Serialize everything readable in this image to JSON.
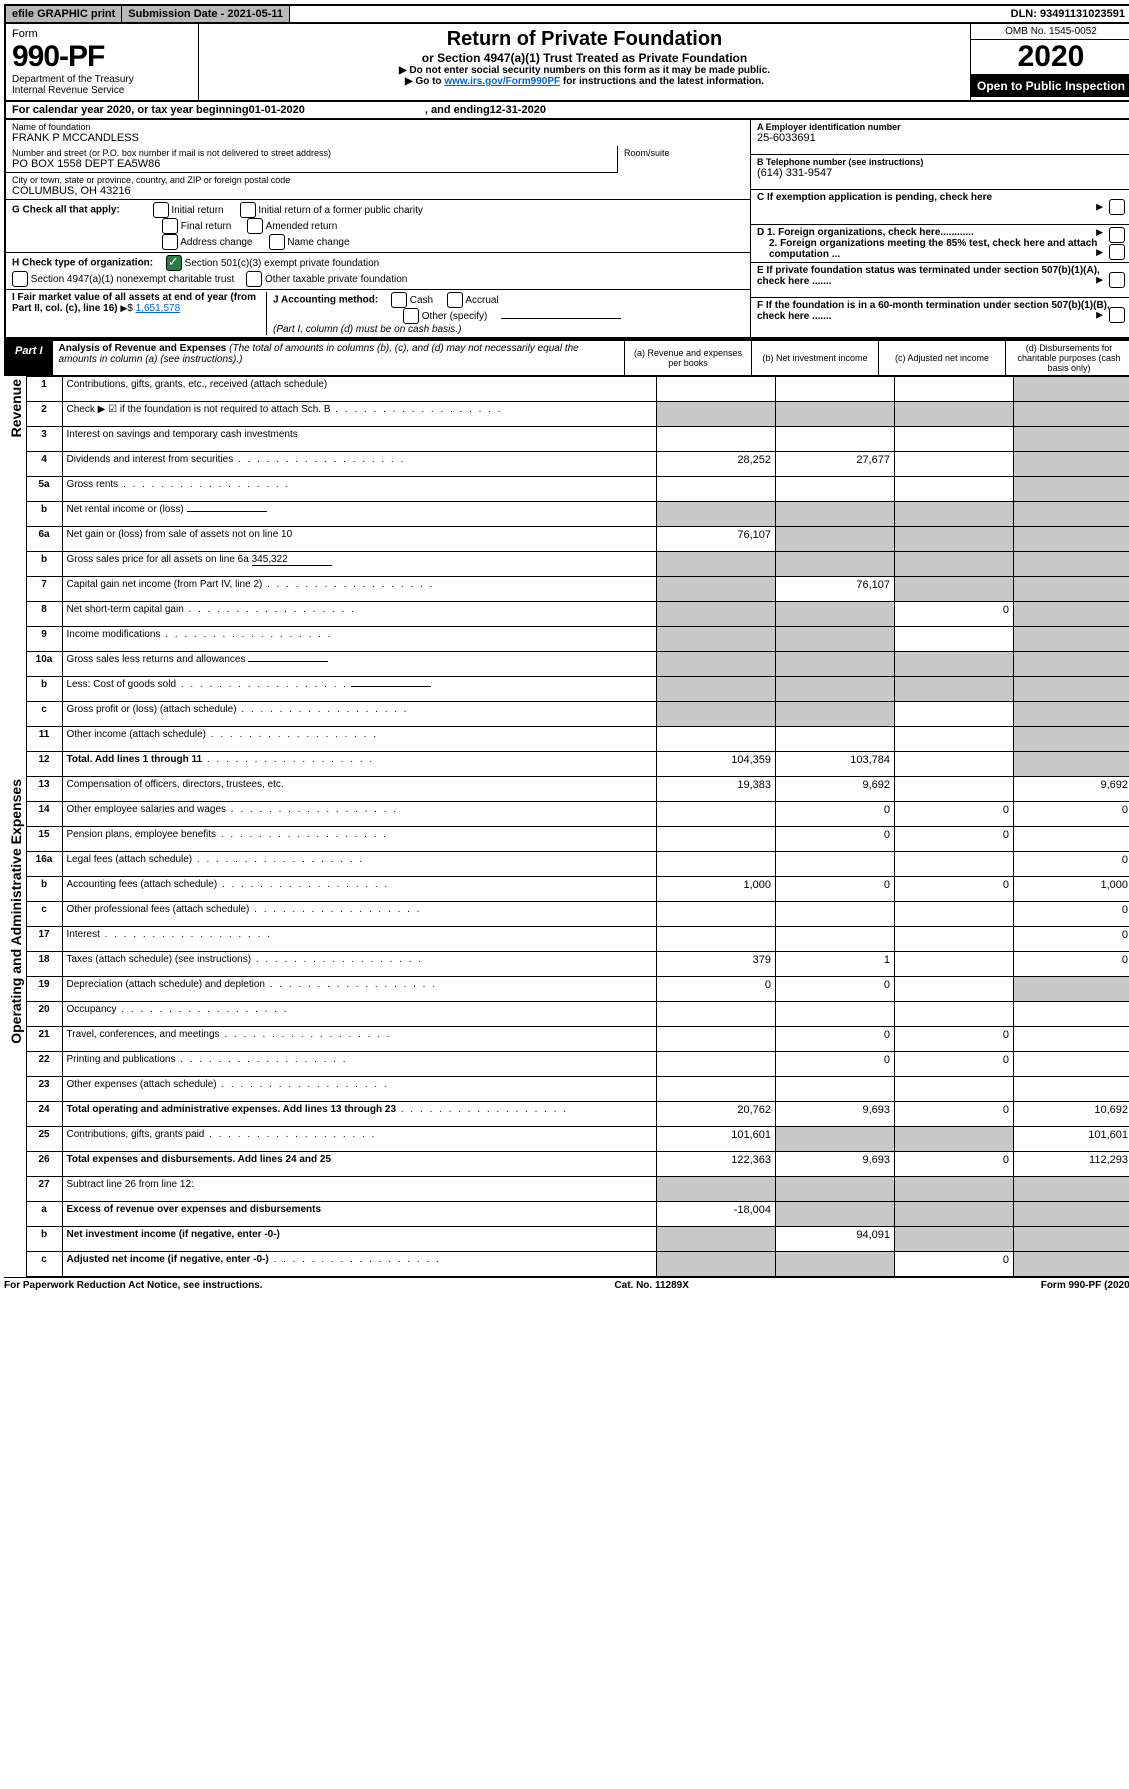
{
  "top": {
    "efile": "efile GRAPHIC print",
    "subdate_label": "Submission Date - ",
    "subdate": "2021-05-11",
    "dln_label": "DLN: ",
    "dln": "93491131023591"
  },
  "header": {
    "form_word": "Form",
    "form_no": "990-PF",
    "dept": "Department of the Treasury\nInternal Revenue Service",
    "title": "Return of Private Foundation",
    "subtitle": "or Section 4947(a)(1) Trust Treated as Private Foundation",
    "instr1": "▶ Do not enter social security numbers on this form as it may be made public.",
    "instr2_pre": "▶ Go to ",
    "instr2_link": "www.irs.gov/Form990PF",
    "instr2_post": " for instructions and the latest information.",
    "omb": "OMB No. 1545-0052",
    "year": "2020",
    "open": "Open to Public Inspection"
  },
  "cal": {
    "pre": "For calendar year 2020, or tax year beginning ",
    "begin": "01-01-2020",
    "mid": ", and ending ",
    "end": "12-31-2020"
  },
  "id": {
    "name_label": "Name of foundation",
    "name": "FRANK P MCCANDLESS",
    "addr_label": "Number and street (or P.O. box number if mail is not delivered to street address)",
    "addr": "PO BOX 1558 DEPT EA5W86",
    "room_label": "Room/suite",
    "city_label": "City or town, state or province, country, and ZIP or foreign postal code",
    "city": "COLUMBUS, OH  43216",
    "a_label": "A Employer identification number",
    "a_val": "25-6033691",
    "b_label": "B Telephone number (see instructions)",
    "b_val": "(614) 331-9547",
    "c_label": "C If exemption application is pending, check here",
    "d1_label": "D 1. Foreign organizations, check here............",
    "d2_label": "2. Foreign organizations meeting the 85% test, check here and attach computation ...",
    "e_label": "E  If private foundation status was terminated under section 507(b)(1)(A), check here .......",
    "f_label": "F  If the foundation is in a 60-month termination under section 507(b)(1)(B), check here .......",
    "g_label": "G Check all that apply:",
    "g_opts": [
      "Initial return",
      "Initial return of a former public charity",
      "Final return",
      "Amended return",
      "Address change",
      "Name change"
    ],
    "h_label": "H Check type of organization:",
    "h_opts": [
      "Section 501(c)(3) exempt private foundation",
      "Section 4947(a)(1) nonexempt charitable trust",
      "Other taxable private foundation"
    ],
    "i_label": "I Fair market value of all assets at end of year (from Part II, col. (c), line 16)",
    "i_val": "1,651,578",
    "j_label": "J Accounting method:",
    "j_opts": [
      "Cash",
      "Accrual",
      "Other (specify)"
    ],
    "j_note": "(Part I, column (d) must be on cash basis.)"
  },
  "part1": {
    "label": "Part I",
    "title": "Analysis of Revenue and Expenses",
    "note": "(The total of amounts in columns (b), (c), and (d) may not necessarily equal the amounts in column (a) (see instructions).)",
    "cols": {
      "a": "(a)   Revenue and expenses per books",
      "b": "(b)   Net investment income",
      "c": "(c)   Adjusted net income",
      "d": "(d)   Disbursements for charitable purposes (cash basis only)"
    }
  },
  "sidelabels": {
    "rev": "Revenue",
    "exp": "Operating and Administrative Expenses"
  },
  "rows": [
    {
      "n": "1",
      "t": "Contributions, gifts, grants, etc., received (attach schedule)",
      "a": "",
      "b": "",
      "c": "",
      "d": "shade"
    },
    {
      "n": "2",
      "t": "Check ▶ ☑ if the foundation is not required to attach Sch. B",
      "dots": true,
      "a": "shade",
      "b": "shade",
      "c": "shade",
      "d": "shade",
      "bold": false
    },
    {
      "n": "3",
      "t": "Interest on savings and temporary cash investments",
      "a": "",
      "b": "",
      "c": "",
      "d": "shade"
    },
    {
      "n": "4",
      "t": "Dividends and interest from securities",
      "dots": true,
      "a": "28,252",
      "b": "27,677",
      "c": "",
      "d": "shade"
    },
    {
      "n": "5a",
      "t": "Gross rents",
      "dots": true,
      "a": "",
      "b": "",
      "c": "",
      "d": "shade"
    },
    {
      "n": "b",
      "t": "Net rental income or (loss)",
      "inline": true,
      "a": "shade",
      "b": "shade",
      "c": "shade",
      "d": "shade"
    },
    {
      "n": "6a",
      "t": "Net gain or (loss) from sale of assets not on line 10",
      "a": "76,107",
      "b": "shade",
      "c": "shade",
      "d": "shade"
    },
    {
      "n": "b",
      "t": "Gross sales price for all assets on line 6a",
      "inline": true,
      "ival": "345,322",
      "a": "shade",
      "b": "shade",
      "c": "shade",
      "d": "shade"
    },
    {
      "n": "7",
      "t": "Capital gain net income (from Part IV, line 2)",
      "dots": true,
      "a": "shade",
      "b": "76,107",
      "c": "shade",
      "d": "shade"
    },
    {
      "n": "8",
      "t": "Net short-term capital gain",
      "dots": true,
      "a": "shade",
      "b": "shade",
      "c": "0",
      "d": "shade"
    },
    {
      "n": "9",
      "t": "Income modifications",
      "dots": true,
      "a": "shade",
      "b": "shade",
      "c": "",
      "d": "shade"
    },
    {
      "n": "10a",
      "t": "Gross sales less returns and allowances",
      "inline": true,
      "a": "shade",
      "b": "shade",
      "c": "shade",
      "d": "shade"
    },
    {
      "n": "b",
      "t": "Less: Cost of goods sold",
      "dots": true,
      "inline": true,
      "a": "shade",
      "b": "shade",
      "c": "shade",
      "d": "shade"
    },
    {
      "n": "c",
      "t": "Gross profit or (loss) (attach schedule)",
      "dots": true,
      "a": "shade",
      "b": "shade",
      "c": "",
      "d": "shade"
    },
    {
      "n": "11",
      "t": "Other income (attach schedule)",
      "dots": true,
      "a": "",
      "b": "",
      "c": "",
      "d": "shade"
    },
    {
      "n": "12",
      "t": "Total. Add lines 1 through 11",
      "dots": true,
      "bold": true,
      "a": "104,359",
      "b": "103,784",
      "c": "",
      "d": "shade"
    },
    {
      "n": "13",
      "t": "Compensation of officers, directors, trustees, etc.",
      "a": "19,383",
      "b": "9,692",
      "c": "",
      "d": "9,692"
    },
    {
      "n": "14",
      "t": "Other employee salaries and wages",
      "dots": true,
      "a": "",
      "b": "0",
      "c": "0",
      "d": "0"
    },
    {
      "n": "15",
      "t": "Pension plans, employee benefits",
      "dots": true,
      "a": "",
      "b": "0",
      "c": "0",
      "d": ""
    },
    {
      "n": "16a",
      "t": "Legal fees (attach schedule)",
      "dots": true,
      "a": "",
      "b": "",
      "c": "",
      "d": "0"
    },
    {
      "n": "b",
      "t": "Accounting fees (attach schedule)",
      "dots": true,
      "a": "1,000",
      "b": "0",
      "c": "0",
      "d": "1,000"
    },
    {
      "n": "c",
      "t": "Other professional fees (attach schedule)",
      "dots": true,
      "a": "",
      "b": "",
      "c": "",
      "d": "0"
    },
    {
      "n": "17",
      "t": "Interest",
      "dots": true,
      "a": "",
      "b": "",
      "c": "",
      "d": "0"
    },
    {
      "n": "18",
      "t": "Taxes (attach schedule) (see instructions)",
      "dots": true,
      "a": "379",
      "b": "1",
      "c": "",
      "d": "0"
    },
    {
      "n": "19",
      "t": "Depreciation (attach schedule) and depletion",
      "dots": true,
      "a": "0",
      "b": "0",
      "c": "",
      "d": "shade"
    },
    {
      "n": "20",
      "t": "Occupancy",
      "dots": true,
      "a": "",
      "b": "",
      "c": "",
      "d": ""
    },
    {
      "n": "21",
      "t": "Travel, conferences, and meetings",
      "dots": true,
      "a": "",
      "b": "0",
      "c": "0",
      "d": ""
    },
    {
      "n": "22",
      "t": "Printing and publications",
      "dots": true,
      "a": "",
      "b": "0",
      "c": "0",
      "d": ""
    },
    {
      "n": "23",
      "t": "Other expenses (attach schedule)",
      "dots": true,
      "a": "",
      "b": "",
      "c": "",
      "d": ""
    },
    {
      "n": "24",
      "t": "Total operating and administrative expenses. Add lines 13 through 23",
      "dots": true,
      "bold": true,
      "a": "20,762",
      "b": "9,693",
      "c": "0",
      "d": "10,692"
    },
    {
      "n": "25",
      "t": "Contributions, gifts, grants paid",
      "dots": true,
      "a": "101,601",
      "b": "shade",
      "c": "shade",
      "d": "101,601"
    },
    {
      "n": "26",
      "t": "Total expenses and disbursements. Add lines 24 and 25",
      "bold": true,
      "a": "122,363",
      "b": "9,693",
      "c": "0",
      "d": "112,293"
    },
    {
      "n": "27",
      "t": "Subtract line 26 from line 12:",
      "a": "shade",
      "b": "shade",
      "c": "shade",
      "d": "shade"
    },
    {
      "n": "a",
      "t": "Excess of revenue over expenses and disbursements",
      "bold": true,
      "a": "-18,004",
      "b": "shade",
      "c": "shade",
      "d": "shade"
    },
    {
      "n": "b",
      "t": "Net investment income (if negative, enter -0-)",
      "bold": true,
      "a": "shade",
      "b": "94,091",
      "c": "shade",
      "d": "shade"
    },
    {
      "n": "c",
      "t": "Adjusted net income (if negative, enter -0-)",
      "dots": true,
      "bold": true,
      "a": "shade",
      "b": "shade",
      "c": "0",
      "d": "shade"
    }
  ],
  "footer": {
    "left": "For Paperwork Reduction Act Notice, see instructions.",
    "mid": "Cat. No. 11289X",
    "right": "Form 990-PF (2020)"
  },
  "colwidths": {
    "side": 22,
    "ln": 36,
    "desc": 460,
    "val": 118
  }
}
